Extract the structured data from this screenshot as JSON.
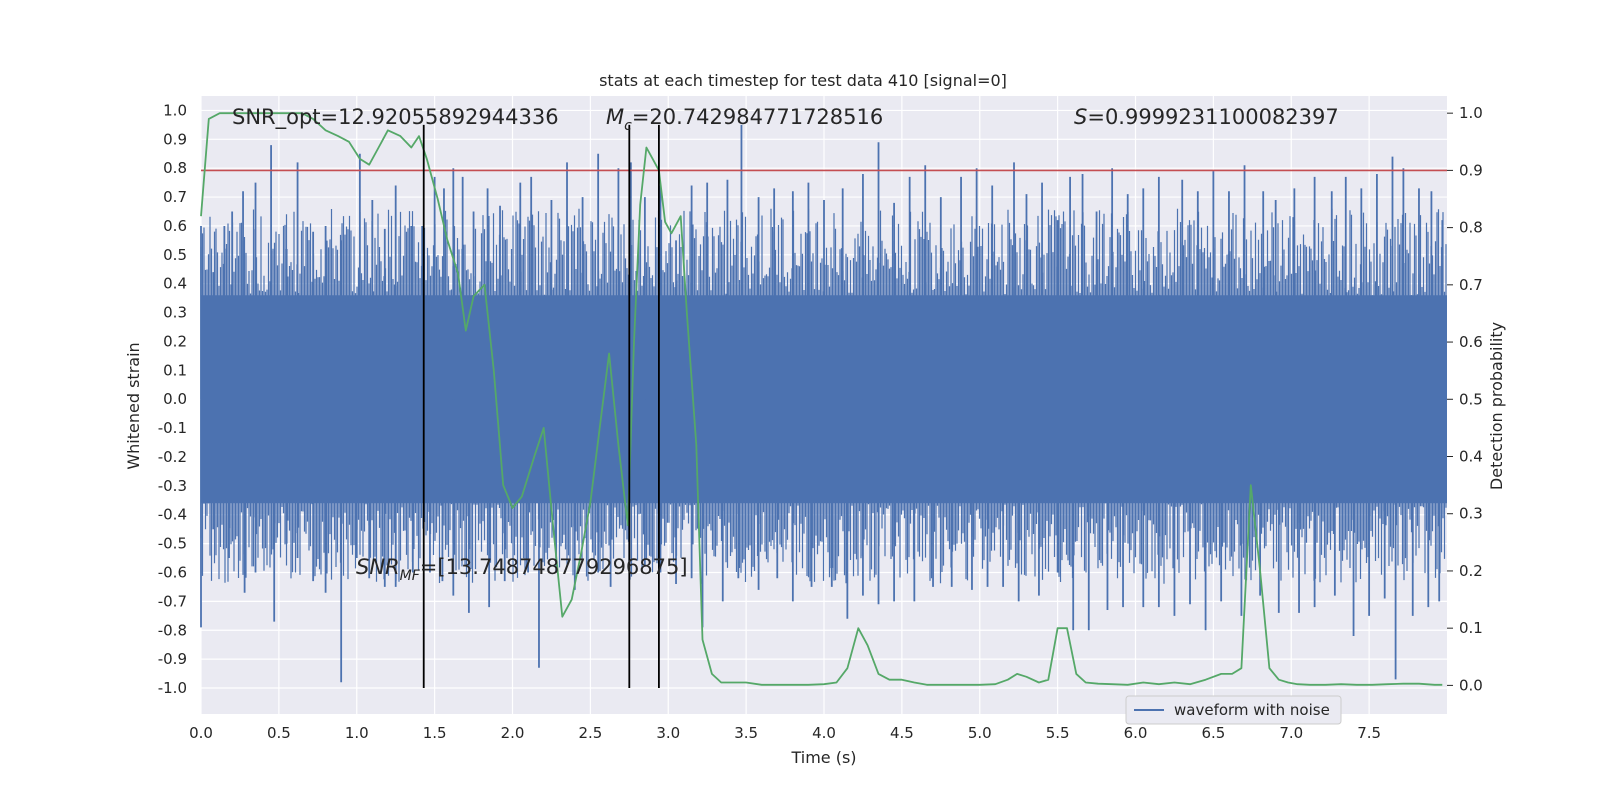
{
  "chart_data": {
    "type": "line",
    "title": "stats at each timestep for test data 410 [signal=0]",
    "xlabel": "Time (s)",
    "ylabel_left": "Whitened strain",
    "ylabel_right": "Detection probability",
    "xlim": [
      0.0,
      8.0
    ],
    "ylim_left": [
      -1.09,
      1.05
    ],
    "ylim_right": [
      -0.05,
      1.03
    ],
    "x_ticks": [
      "0.0",
      "0.5",
      "1.0",
      "1.5",
      "2.0",
      "2.5",
      "3.0",
      "3.5",
      "4.0",
      "4.5",
      "5.0",
      "5.5",
      "6.0",
      "6.5",
      "7.0",
      "7.5"
    ],
    "y_ticks_left": [
      "1.0",
      "0.9",
      "0.8",
      "0.7",
      "0.6",
      "0.5",
      "0.4",
      "0.3",
      "0.2",
      "0.1",
      "0.0",
      "-0.1",
      "-0.2",
      "-0.3",
      "-0.4",
      "-0.5",
      "-0.6",
      "-0.7",
      "-0.8",
      "-0.9",
      "-1.0"
    ],
    "y_ticks_right": [
      "1.0",
      "0.9",
      "0.8",
      "0.7",
      "0.6",
      "0.5",
      "0.4",
      "0.3",
      "0.2",
      "0.1",
      "0.0"
    ],
    "grid": true,
    "legend": {
      "entries": [
        "waveform with noise"
      ],
      "position": "lower-right"
    },
    "annotations": {
      "snr_opt": "SNR_opt=12.92055892944336",
      "mc_symbol": "M",
      "mc_sub": "c",
      "mc_value": "=20.742984771728516",
      "s_symbol": "S",
      "s_value": "=0.9999231100082397",
      "snr_mf_symbol": "SNR",
      "snr_mf_sub": "MF",
      "snr_mf_value": "=[13.748748779296875]"
    },
    "threshold_line": {
      "value": 0.9,
      "axis": "right",
      "color": "#c44e52"
    },
    "vertical_lines": [
      1.43,
      2.75,
      2.94
    ],
    "series": [
      {
        "name": "waveform with noise",
        "axis": "left",
        "color": "#4c72b0",
        "envelope_band": [
          -0.36,
          0.36
        ],
        "spikes": [
          [
            0.0,
            0.6
          ],
          [
            0.08,
            0.44
          ],
          [
            0.15,
            0.6
          ],
          [
            0.2,
            0.65
          ],
          [
            0.27,
            0.72
          ],
          [
            0.35,
            0.75
          ],
          [
            0.45,
            0.88
          ],
          [
            0.55,
            0.52
          ],
          [
            0.62,
            0.82
          ],
          [
            0.72,
            0.58
          ],
          [
            0.8,
            0.6
          ],
          [
            0.9,
            0.55
          ],
          [
            1.02,
            0.85
          ],
          [
            1.1,
            0.69
          ],
          [
            1.18,
            0.59
          ],
          [
            1.25,
            0.74
          ],
          [
            1.35,
            0.6
          ],
          [
            1.42,
            0.6
          ],
          [
            1.5,
            0.77
          ],
          [
            1.56,
            0.73
          ],
          [
            1.62,
            0.8
          ],
          [
            1.68,
            0.77
          ],
          [
            1.75,
            0.65
          ],
          [
            1.84,
            0.73
          ],
          [
            1.92,
            0.67
          ],
          [
            2.05,
            0.75
          ],
          [
            2.12,
            0.77
          ],
          [
            2.25,
            0.69
          ],
          [
            2.35,
            0.82
          ],
          [
            2.45,
            0.7
          ],
          [
            2.55,
            0.85
          ],
          [
            2.68,
            0.8
          ],
          [
            2.76,
            0.82
          ],
          [
            2.85,
            0.7
          ],
          [
            2.95,
            0.74
          ],
          [
            3.05,
            0.55
          ],
          [
            3.15,
            0.74
          ],
          [
            3.25,
            0.75
          ],
          [
            3.38,
            0.76
          ],
          [
            3.47,
            0.95
          ],
          [
            3.58,
            0.7
          ],
          [
            3.68,
            0.73
          ],
          [
            3.8,
            0.72
          ],
          [
            3.9,
            0.75
          ],
          [
            4.0,
            0.69
          ],
          [
            4.12,
            0.73
          ],
          [
            4.25,
            0.78
          ],
          [
            4.35,
            0.89
          ],
          [
            4.45,
            0.68
          ],
          [
            4.55,
            0.77
          ],
          [
            4.65,
            0.81
          ],
          [
            4.75,
            0.7
          ],
          [
            4.88,
            0.77
          ],
          [
            4.98,
            0.8
          ],
          [
            5.08,
            0.74
          ],
          [
            5.22,
            0.82
          ],
          [
            5.3,
            0.71
          ],
          [
            5.4,
            0.75
          ],
          [
            5.5,
            0.62
          ],
          [
            5.58,
            0.77
          ],
          [
            5.66,
            0.78
          ],
          [
            5.75,
            0.65
          ],
          [
            5.85,
            0.8
          ],
          [
            5.95,
            0.71
          ],
          [
            6.05,
            0.73
          ],
          [
            6.15,
            0.77
          ],
          [
            6.3,
            0.76
          ],
          [
            6.4,
            0.72
          ],
          [
            6.5,
            0.79
          ],
          [
            6.6,
            0.72
          ],
          [
            6.7,
            0.81
          ],
          [
            6.82,
            0.72
          ],
          [
            6.9,
            0.69
          ],
          [
            7.02,
            0.73
          ],
          [
            7.15,
            0.77
          ],
          [
            7.26,
            0.72
          ],
          [
            7.35,
            0.77
          ],
          [
            7.45,
            0.73
          ],
          [
            7.55,
            0.78
          ],
          [
            7.65,
            0.84
          ],
          [
            7.72,
            0.8
          ],
          [
            7.82,
            0.73
          ],
          [
            7.9,
            0.72
          ],
          [
            7.97,
            0.62
          ],
          [
            0.0,
            -0.79
          ],
          [
            0.08,
            -0.45
          ],
          [
            0.18,
            -0.55
          ],
          [
            0.28,
            -0.67
          ],
          [
            0.35,
            -0.6
          ],
          [
            0.47,
            -0.77
          ],
          [
            0.55,
            -0.5
          ],
          [
            0.62,
            -0.55
          ],
          [
            0.72,
            -0.63
          ],
          [
            0.8,
            -0.67
          ],
          [
            0.9,
            -0.98
          ],
          [
            1.0,
            -0.55
          ],
          [
            1.08,
            -0.62
          ],
          [
            1.18,
            -0.65
          ],
          [
            1.25,
            -0.65
          ],
          [
            1.36,
            -0.6
          ],
          [
            1.47,
            -0.6
          ],
          [
            1.55,
            -0.63
          ],
          [
            1.62,
            -0.68
          ],
          [
            1.72,
            -0.74
          ],
          [
            1.85,
            -0.72
          ],
          [
            1.95,
            -0.63
          ],
          [
            2.1,
            -0.6
          ],
          [
            2.17,
            -0.93
          ],
          [
            2.28,
            -0.6
          ],
          [
            2.4,
            -0.66
          ],
          [
            2.55,
            -0.6
          ],
          [
            2.63,
            -0.65
          ],
          [
            2.75,
            -0.6
          ],
          [
            2.85,
            -0.58
          ],
          [
            2.95,
            -0.6
          ],
          [
            3.05,
            -0.64
          ],
          [
            3.15,
            -0.62
          ],
          [
            3.22,
            -0.79
          ],
          [
            3.35,
            -0.7
          ],
          [
            3.45,
            -0.62
          ],
          [
            3.58,
            -0.66
          ],
          [
            3.7,
            -0.62
          ],
          [
            3.8,
            -0.7
          ],
          [
            3.92,
            -0.65
          ],
          [
            4.05,
            -0.65
          ],
          [
            4.15,
            -0.76
          ],
          [
            4.25,
            -0.68
          ],
          [
            4.35,
            -0.71
          ],
          [
            4.45,
            -0.7
          ],
          [
            4.58,
            -0.7
          ],
          [
            4.7,
            -0.65
          ],
          [
            4.82,
            -0.65
          ],
          [
            4.95,
            -0.66
          ],
          [
            5.05,
            -0.65
          ],
          [
            5.15,
            -0.65
          ],
          [
            5.25,
            -0.7
          ],
          [
            5.38,
            -0.68
          ],
          [
            5.5,
            -0.6
          ],
          [
            5.6,
            -0.8
          ],
          [
            5.7,
            -0.8
          ],
          [
            5.82,
            -0.73
          ],
          [
            5.92,
            -0.72
          ],
          [
            6.05,
            -0.72
          ],
          [
            6.15,
            -0.72
          ],
          [
            6.25,
            -0.75
          ],
          [
            6.35,
            -0.71
          ],
          [
            6.45,
            -0.8
          ],
          [
            6.55,
            -0.7
          ],
          [
            6.68,
            -0.75
          ],
          [
            6.8,
            -0.68
          ],
          [
            6.92,
            -0.74
          ],
          [
            7.05,
            -0.74
          ],
          [
            7.15,
            -0.72
          ],
          [
            7.28,
            -0.68
          ],
          [
            7.4,
            -0.82
          ],
          [
            7.5,
            -0.75
          ],
          [
            7.6,
            -0.69
          ],
          [
            7.67,
            -0.97
          ],
          [
            7.78,
            -0.75
          ],
          [
            7.88,
            -0.72
          ],
          [
            7.95,
            -0.7
          ]
        ]
      },
      {
        "name": "detection probability",
        "axis": "right",
        "color": "#55a868",
        "x": [
          0.0,
          0.05,
          0.12,
          0.2,
          0.3,
          0.5,
          0.65,
          0.72,
          0.8,
          0.88,
          0.95,
          1.02,
          1.08,
          1.14,
          1.2,
          1.28,
          1.35,
          1.4,
          1.45,
          1.52,
          1.58,
          1.65,
          1.7,
          1.75,
          1.82,
          1.88,
          1.94,
          2.0,
          2.06,
          2.14,
          2.2,
          2.26,
          2.32,
          2.38,
          2.44,
          2.5,
          2.56,
          2.62,
          2.68,
          2.74,
          2.78,
          2.82,
          2.86,
          2.9,
          2.94,
          2.98,
          3.02,
          3.08,
          3.12,
          3.18,
          3.22,
          3.28,
          3.34,
          3.4,
          3.5,
          3.6,
          3.7,
          3.8,
          3.9,
          4.0,
          4.08,
          4.15,
          4.22,
          4.28,
          4.35,
          4.42,
          4.5,
          4.58,
          4.66,
          4.74,
          4.82,
          4.9,
          5.0,
          5.1,
          5.18,
          5.24,
          5.3,
          5.38,
          5.44,
          5.5,
          5.56,
          5.62,
          5.68,
          5.76,
          5.85,
          5.95,
          6.05,
          6.15,
          6.25,
          6.35,
          6.45,
          6.55,
          6.62,
          6.68,
          6.74,
          6.8,
          6.86,
          6.92,
          6.98,
          7.04,
          7.12,
          7.22,
          7.32,
          7.42,
          7.52,
          7.62,
          7.72,
          7.82,
          7.92,
          7.97
        ],
        "y": [
          0.82,
          0.99,
          1.0,
          1.0,
          1.0,
          1.0,
          1.0,
          0.99,
          0.97,
          0.96,
          0.95,
          0.92,
          0.91,
          0.94,
          0.97,
          0.96,
          0.94,
          0.96,
          0.92,
          0.85,
          0.78,
          0.72,
          0.62,
          0.68,
          0.7,
          0.55,
          0.35,
          0.31,
          0.33,
          0.4,
          0.45,
          0.28,
          0.12,
          0.15,
          0.23,
          0.32,
          0.45,
          0.58,
          0.42,
          0.28,
          0.6,
          0.84,
          0.94,
          0.92,
          0.9,
          0.81,
          0.79,
          0.82,
          0.65,
          0.42,
          0.08,
          0.02,
          0.005,
          0.005,
          0.005,
          0.001,
          0.001,
          0.001,
          0.001,
          0.002,
          0.005,
          0.03,
          0.1,
          0.07,
          0.02,
          0.01,
          0.01,
          0.005,
          0.001,
          0.001,
          0.001,
          0.001,
          0.001,
          0.002,
          0.01,
          0.02,
          0.015,
          0.005,
          0.01,
          0.1,
          0.1,
          0.02,
          0.005,
          0.003,
          0.002,
          0.001,
          0.005,
          0.002,
          0.005,
          0.002,
          0.01,
          0.02,
          0.02,
          0.03,
          0.35,
          0.2,
          0.03,
          0.01,
          0.005,
          0.002,
          0.001,
          0.001,
          0.002,
          0.001,
          0.001,
          0.002,
          0.003,
          0.003,
          0.001,
          0.001
        ]
      }
    ]
  }
}
